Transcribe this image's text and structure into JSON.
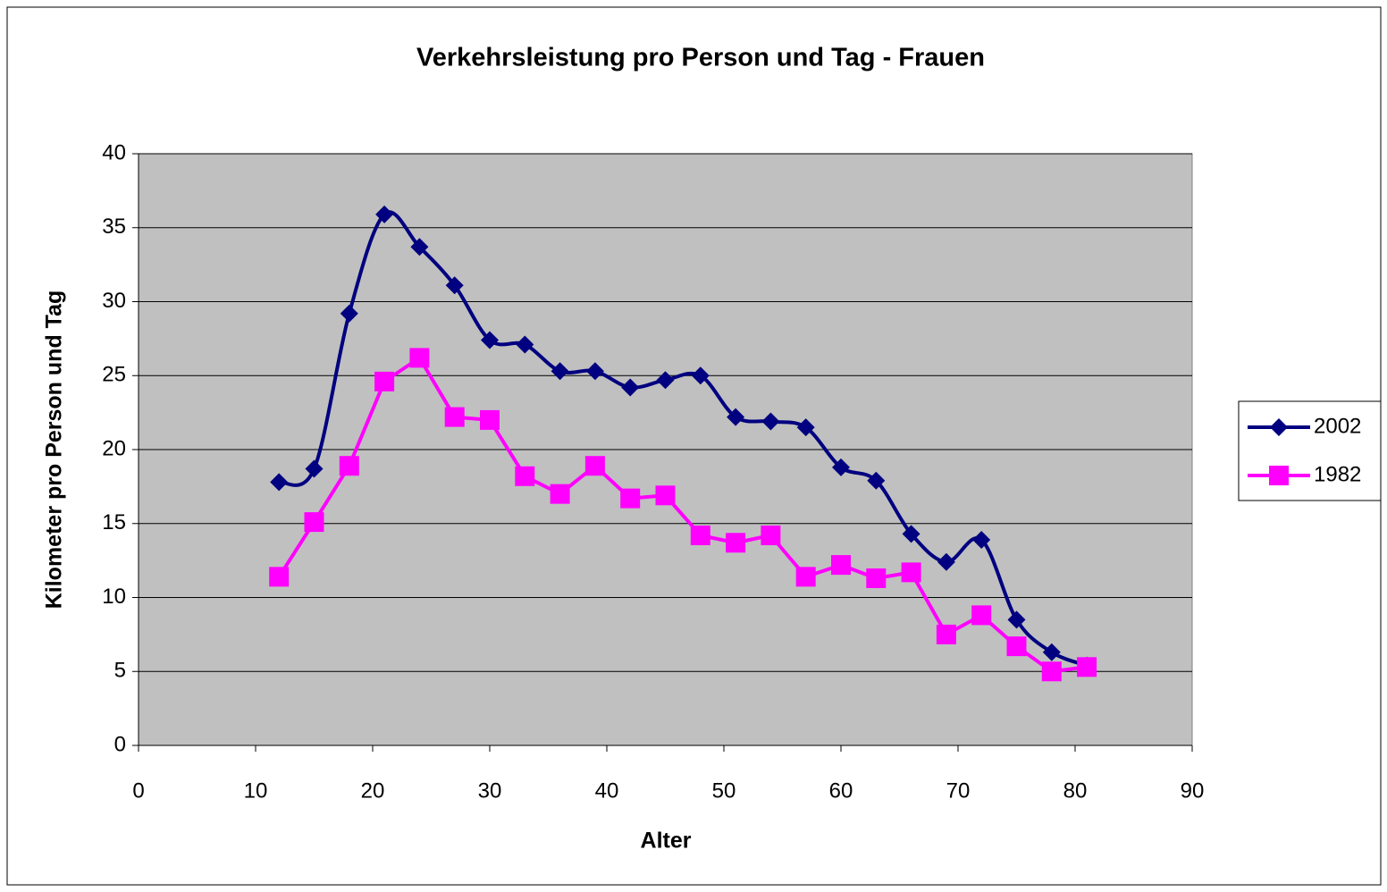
{
  "chart_data": {
    "type": "line",
    "title": "Verkehrsleistung pro Person und Tag - Frauen",
    "xlabel": "Alter",
    "ylabel": "Kilometer pro Person und Tag",
    "x": [
      12,
      15,
      18,
      21,
      24,
      27,
      30,
      33,
      36,
      39,
      42,
      45,
      48,
      51,
      54,
      57,
      60,
      63,
      66,
      69,
      72,
      75,
      78,
      81
    ],
    "series": [
      {
        "name": "2002",
        "color": "#000080",
        "marker": "diamond",
        "smooth": true,
        "values": [
          17.8,
          18.7,
          29.2,
          35.9,
          33.7,
          31.1,
          27.4,
          27.1,
          25.3,
          25.3,
          24.2,
          24.7,
          25.0,
          22.2,
          21.9,
          21.5,
          18.8,
          17.9,
          14.3,
          12.4,
          13.9,
          8.5,
          6.3,
          5.4
        ]
      },
      {
        "name": "1982",
        "color": "#ff00ff",
        "marker": "square",
        "smooth": false,
        "values": [
          11.4,
          15.1,
          18.9,
          24.6,
          26.2,
          22.2,
          22.0,
          18.2,
          17.0,
          18.9,
          16.7,
          16.9,
          14.2,
          13.7,
          14.2,
          11.4,
          12.2,
          11.3,
          11.7,
          7.5,
          8.8,
          6.7,
          5.0,
          5.3
        ]
      }
    ],
    "xlim": [
      0,
      90
    ],
    "xticks": [
      0,
      10,
      20,
      30,
      40,
      50,
      60,
      70,
      80,
      90
    ],
    "ylim": [
      0,
      40
    ],
    "yticks": [
      0,
      5,
      10,
      15,
      20,
      25,
      30,
      35,
      40
    ],
    "grid": true,
    "legend": "right",
    "plot_background": "#c0c0c0"
  }
}
